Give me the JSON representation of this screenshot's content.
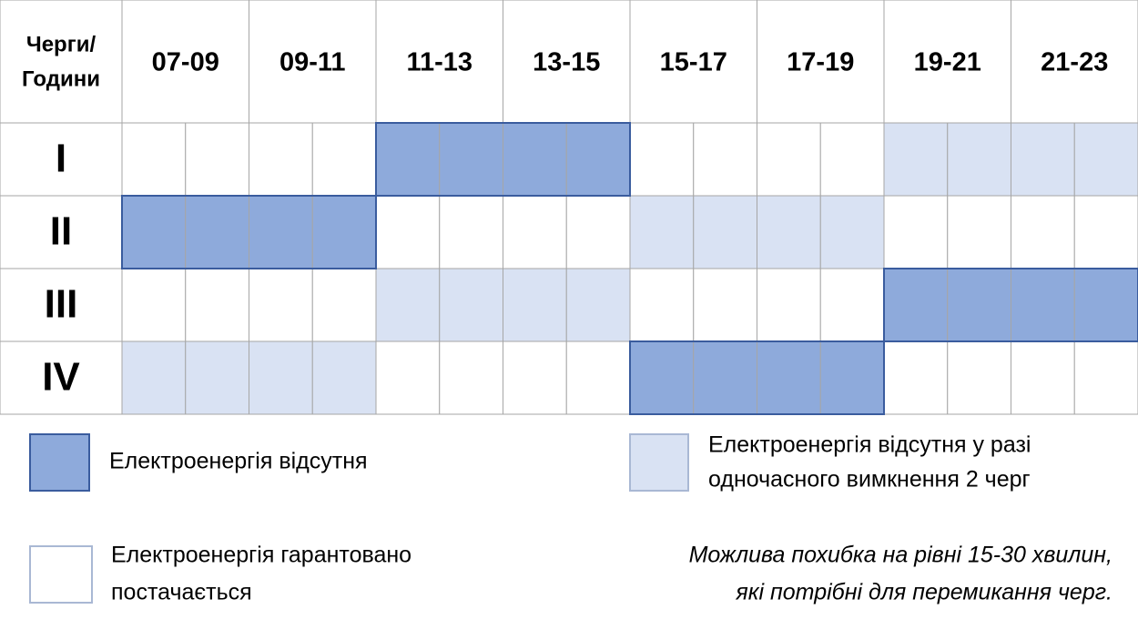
{
  "table": {
    "corner": [
      "Черги/",
      "Години"
    ],
    "hours": [
      "07-09",
      "09-11",
      "11-13",
      "13-15",
      "15-17",
      "17-19",
      "19-21",
      "21-23"
    ],
    "rows": [
      {
        "label": "I",
        "cells": [
          2,
          2,
          2,
          2,
          0,
          0,
          0,
          0,
          2,
          2,
          2,
          2,
          1,
          1,
          1,
          1
        ]
      },
      {
        "label": "II",
        "cells": [
          0,
          0,
          0,
          0,
          2,
          2,
          2,
          2,
          1,
          1,
          1,
          1,
          2,
          2,
          2,
          2
        ]
      },
      {
        "label": "III",
        "cells": [
          2,
          2,
          2,
          2,
          1,
          1,
          1,
          1,
          2,
          2,
          2,
          2,
          0,
          0,
          0,
          0
        ]
      },
      {
        "label": "IV",
        "cells": [
          1,
          1,
          1,
          1,
          2,
          2,
          2,
          2,
          0,
          0,
          0,
          0,
          2,
          2,
          2,
          2
        ]
      }
    ]
  },
  "legend": [
    {
      "label": [
        "Електроенергія відсутня"
      ],
      "fill": "#8eaadb",
      "border": "#3a5c9e"
    },
    {
      "label": [
        "Електроенергія відсутня у разі",
        "одночасного вимкнення 2 черг"
      ],
      "fill": "#d9e2f3",
      "border": "#a9b8d4"
    },
    {
      "label": [
        "Електроенергія гарантовано",
        "постачається"
      ],
      "fill": "#ffffff",
      "border": "#a9b8d4"
    }
  ],
  "note": [
    "Можлива похибка на рівні 15-30 хвилин,",
    "які потрібні для перемикання черг."
  ]
}
